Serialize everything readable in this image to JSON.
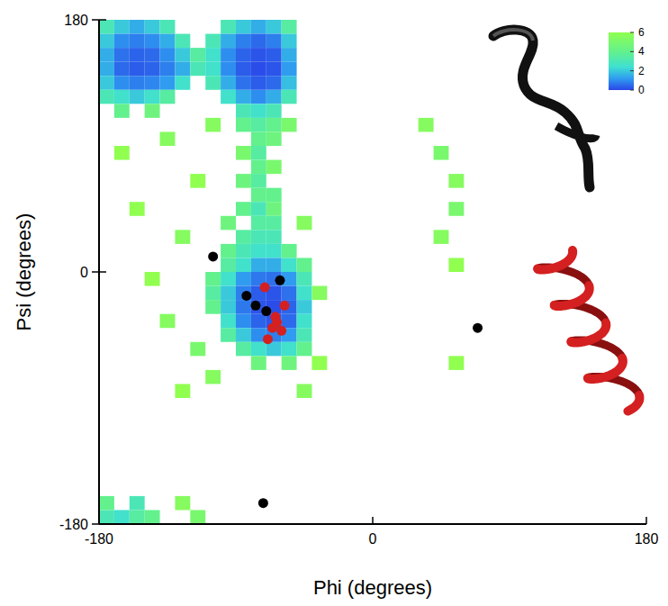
{
  "chart_data": {
    "type": "scatter",
    "x_label": "Phi (degrees)",
    "y_label": "Psi (degrees)",
    "xlim": [
      -180,
      180
    ],
    "ylim": [
      -180,
      180
    ],
    "xticks": [
      -180,
      0,
      180
    ],
    "yticks": [
      -180,
      0,
      180
    ],
    "grid": false,
    "heatmap": {
      "cells": [
        [
          -175,
          175,
          3
        ],
        [
          -165,
          175,
          2
        ],
        [
          -155,
          175,
          1.5
        ],
        [
          -145,
          175,
          2
        ],
        [
          -135,
          175,
          3
        ],
        [
          -175,
          165,
          2
        ],
        [
          -165,
          165,
          1
        ],
        [
          -155,
          165,
          0.8
        ],
        [
          -145,
          165,
          1
        ],
        [
          -135,
          165,
          1.5
        ],
        [
          -125,
          165,
          3
        ],
        [
          -175,
          155,
          1.5
        ],
        [
          -165,
          155,
          0.6
        ],
        [
          -155,
          155,
          0.4
        ],
        [
          -145,
          155,
          0.5
        ],
        [
          -135,
          155,
          1
        ],
        [
          -125,
          155,
          2
        ],
        [
          -115,
          155,
          3.5
        ],
        [
          -175,
          145,
          1.5
        ],
        [
          -165,
          145,
          0.5
        ],
        [
          -155,
          145,
          0.3
        ],
        [
          -145,
          145,
          0.4
        ],
        [
          -135,
          145,
          0.8
        ],
        [
          -125,
          145,
          1.5
        ],
        [
          -115,
          145,
          3
        ],
        [
          -175,
          135,
          2
        ],
        [
          -165,
          135,
          1
        ],
        [
          -155,
          135,
          0.8
        ],
        [
          -145,
          135,
          0.9
        ],
        [
          -135,
          135,
          1.2
        ],
        [
          -125,
          135,
          2.5
        ],
        [
          -175,
          125,
          3
        ],
        [
          -165,
          125,
          2.5
        ],
        [
          -155,
          125,
          2
        ],
        [
          -145,
          125,
          2.5
        ],
        [
          -135,
          125,
          3.5
        ],
        [
          -165,
          115,
          4
        ],
        [
          -145,
          115,
          4.5
        ],
        [
          -95,
          175,
          3
        ],
        [
          -85,
          175,
          2
        ],
        [
          -75,
          175,
          1.5
        ],
        [
          -65,
          175,
          2
        ],
        [
          -55,
          175,
          3.5
        ],
        [
          -105,
          165,
          3
        ],
        [
          -95,
          165,
          1.5
        ],
        [
          -85,
          165,
          0.8
        ],
        [
          -75,
          165,
          0.5
        ],
        [
          -65,
          165,
          0.8
        ],
        [
          -55,
          165,
          2
        ],
        [
          -105,
          155,
          2.5
        ],
        [
          -95,
          155,
          1
        ],
        [
          -85,
          155,
          0.4
        ],
        [
          -75,
          155,
          0.2
        ],
        [
          -65,
          155,
          0.3
        ],
        [
          -55,
          155,
          1.5
        ],
        [
          -105,
          145,
          2.5
        ],
        [
          -95,
          145,
          1
        ],
        [
          -85,
          145,
          0.3
        ],
        [
          -75,
          145,
          0.1
        ],
        [
          -65,
          145,
          0.2
        ],
        [
          -55,
          145,
          1.2
        ],
        [
          -105,
          135,
          3
        ],
        [
          -95,
          135,
          1.5
        ],
        [
          -85,
          135,
          0.6
        ],
        [
          -75,
          135,
          0.3
        ],
        [
          -65,
          135,
          0.5
        ],
        [
          -55,
          135,
          1.8
        ],
        [
          -95,
          125,
          2.5
        ],
        [
          -85,
          125,
          1.5
        ],
        [
          -75,
          125,
          1
        ],
        [
          -65,
          125,
          1.5
        ],
        [
          -55,
          125,
          3
        ],
        [
          -85,
          115,
          3
        ],
        [
          -75,
          115,
          2.5
        ],
        [
          -65,
          115,
          3
        ],
        [
          -85,
          105,
          4
        ],
        [
          -75,
          105,
          3.5
        ],
        [
          -65,
          105,
          4
        ],
        [
          -75,
          95,
          4
        ],
        [
          -65,
          95,
          4.5
        ],
        [
          -85,
          85,
          5
        ],
        [
          -75,
          85,
          3.5
        ],
        [
          -75,
          75,
          4
        ],
        [
          -65,
          75,
          5
        ],
        [
          -85,
          65,
          4.5
        ],
        [
          -75,
          65,
          3.5
        ],
        [
          -75,
          55,
          4
        ],
        [
          -65,
          55,
          4
        ],
        [
          -85,
          45,
          4
        ],
        [
          -75,
          45,
          3
        ],
        [
          -65,
          45,
          4.5
        ],
        [
          -95,
          35,
          4.5
        ],
        [
          -75,
          35,
          3.5
        ],
        [
          -65,
          35,
          3.5
        ],
        [
          -85,
          25,
          3.5
        ],
        [
          -75,
          25,
          3
        ],
        [
          -65,
          25,
          3
        ],
        [
          -95,
          15,
          4
        ],
        [
          -85,
          15,
          3
        ],
        [
          -75,
          15,
          2.5
        ],
        [
          -65,
          15,
          2.5
        ],
        [
          -55,
          15,
          4
        ],
        [
          -95,
          5,
          3.5
        ],
        [
          -85,
          5,
          2.5
        ],
        [
          -75,
          5,
          1.5
        ],
        [
          -65,
          5,
          1.5
        ],
        [
          -55,
          5,
          2.5
        ],
        [
          -45,
          5,
          4
        ],
        [
          -105,
          -5,
          4
        ],
        [
          -95,
          -5,
          2.5
        ],
        [
          -85,
          -5,
          1.2
        ],
        [
          -75,
          -5,
          0.7
        ],
        [
          -65,
          -5,
          0.6
        ],
        [
          -55,
          -5,
          1.2
        ],
        [
          -45,
          -5,
          3
        ],
        [
          -105,
          -15,
          3.5
        ],
        [
          -95,
          -15,
          2
        ],
        [
          -85,
          -15,
          0.8
        ],
        [
          -75,
          -15,
          0.3
        ],
        [
          -65,
          -15,
          0.2
        ],
        [
          -55,
          -15,
          0.6
        ],
        [
          -45,
          -15,
          2.5
        ],
        [
          -105,
          -25,
          4
        ],
        [
          -95,
          -25,
          2
        ],
        [
          -85,
          -25,
          0.7
        ],
        [
          -75,
          -25,
          0.2
        ],
        [
          -65,
          -25,
          0.1
        ],
        [
          -55,
          -25,
          0.4
        ],
        [
          -45,
          -25,
          2
        ],
        [
          -95,
          -35,
          2.5
        ],
        [
          -85,
          -35,
          1
        ],
        [
          -75,
          -35,
          0.4
        ],
        [
          -65,
          -35,
          0.2
        ],
        [
          -55,
          -35,
          0.5
        ],
        [
          -45,
          -35,
          2.5
        ],
        [
          -95,
          -45,
          3.5
        ],
        [
          -85,
          -45,
          2
        ],
        [
          -75,
          -45,
          1
        ],
        [
          -65,
          -45,
          0.8
        ],
        [
          -55,
          -45,
          1.2
        ],
        [
          -45,
          -45,
          3
        ],
        [
          -85,
          -55,
          3.5
        ],
        [
          -75,
          -55,
          2.5
        ],
        [
          -65,
          -55,
          2
        ],
        [
          -55,
          -55,
          2.5
        ],
        [
          -45,
          -55,
          4
        ],
        [
          -75,
          -65,
          4.5
        ],
        [
          -55,
          -65,
          4.5
        ],
        [
          -135,
          95,
          5.5
        ],
        [
          -115,
          65,
          6
        ],
        [
          -125,
          25,
          5.5
        ],
        [
          -145,
          -5,
          6
        ],
        [
          -135,
          -35,
          5.5
        ],
        [
          -115,
          -55,
          5
        ],
        [
          -155,
          45,
          6
        ],
        [
          -105,
          105,
          5.5
        ],
        [
          -45,
          35,
          5.5
        ],
        [
          -35,
          -15,
          5.5
        ],
        [
          -35,
          -65,
          6
        ],
        [
          -125,
          -85,
          6
        ],
        [
          -165,
          85,
          6
        ],
        [
          -105,
          -75,
          5.5
        ],
        [
          -55,
          105,
          5
        ],
        [
          -45,
          -85,
          5.5
        ],
        [
          35,
          105,
          5.5
        ],
        [
          45,
          85,
          5
        ],
        [
          55,
          65,
          5.5
        ],
        [
          55,
          45,
          5
        ],
        [
          45,
          25,
          5.5
        ],
        [
          55,
          5,
          6
        ],
        [
          55,
          -65,
          6
        ],
        [
          -175,
          -175,
          3
        ],
        [
          -165,
          -175,
          2.5
        ],
        [
          -155,
          -175,
          3.5
        ],
        [
          -145,
          -175,
          4
        ],
        [
          -175,
          -165,
          4
        ],
        [
          -155,
          -165,
          3
        ],
        [
          -115,
          -175,
          5
        ],
        [
          -125,
          -165,
          5.5
        ]
      ]
    },
    "colorbar": {
      "range": [
        0,
        6
      ],
      "ticks": [
        0,
        2,
        4,
        6
      ]
    },
    "series": [
      {
        "color": "#000000",
        "marker": "circle",
        "x": [
          -105,
          -83,
          -77,
          -70,
          -61,
          69,
          -72
        ],
        "values": [
          11,
          -17,
          -24,
          -28,
          -6,
          -40,
          -165
        ]
      },
      {
        "color": "#d42020",
        "marker": "circle",
        "x": [
          -71,
          -58,
          -64,
          -66,
          -69,
          -60,
          -63
        ],
        "values": [
          -11,
          -24,
          -32,
          -40,
          -48,
          -42,
          -36
        ]
      }
    ]
  }
}
